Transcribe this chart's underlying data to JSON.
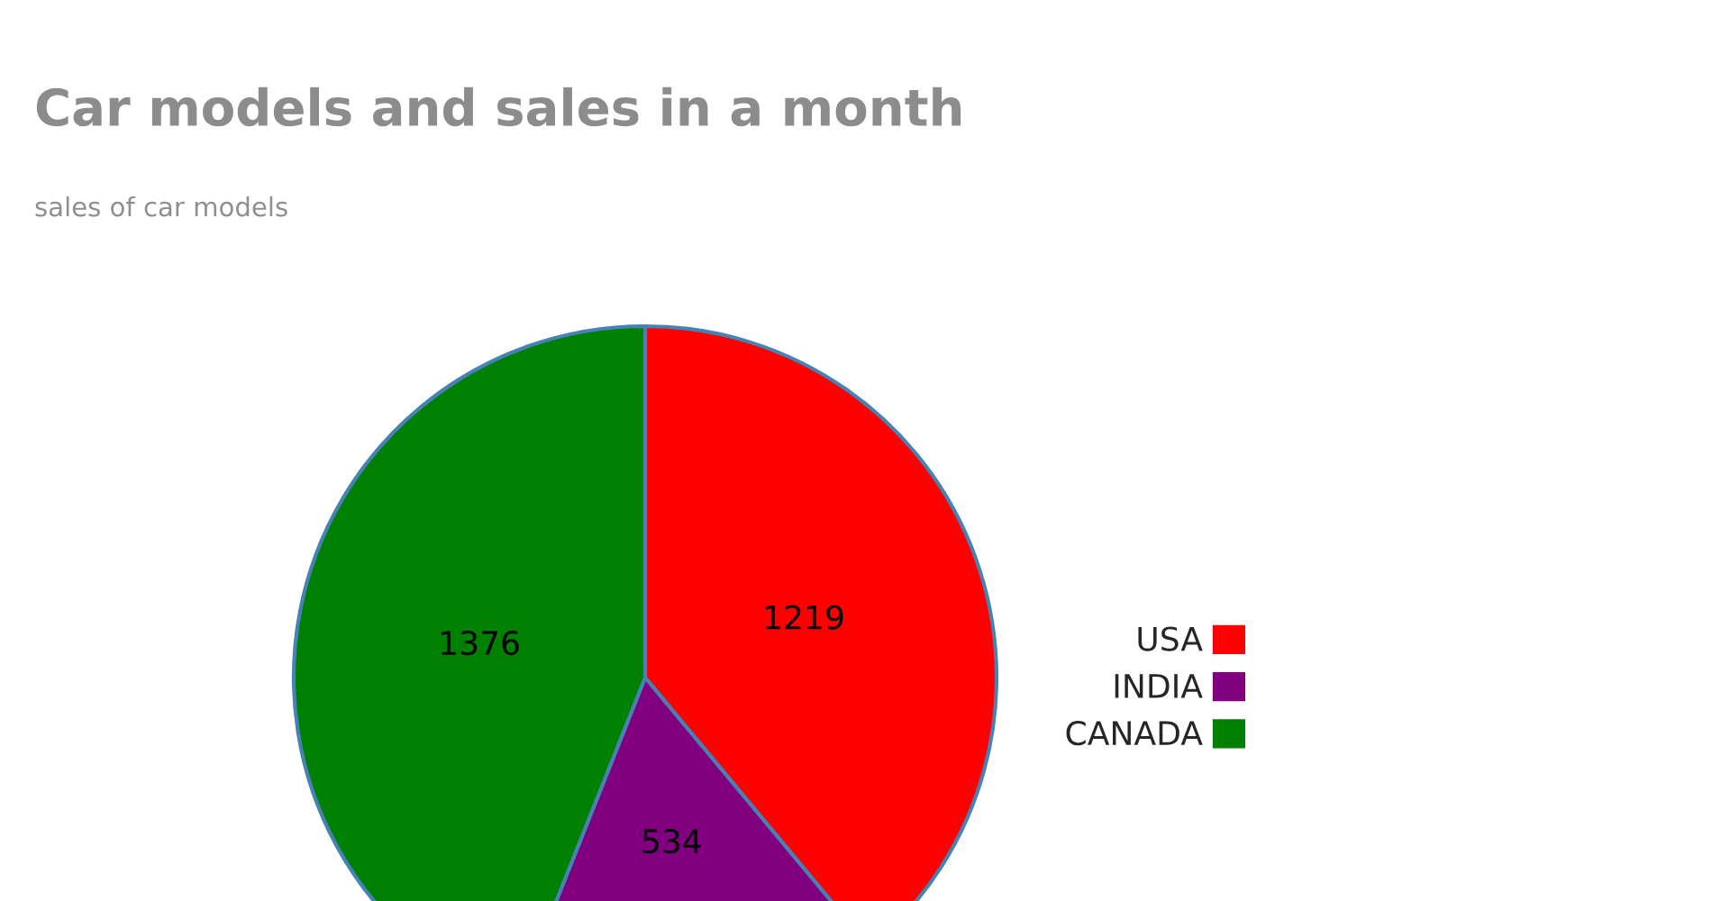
{
  "chart_data": {
    "type": "pie",
    "title": "Car models and sales in a month",
    "subtitle": "sales of car models",
    "categories": [
      "USA",
      "INDIA",
      "CANADA"
    ],
    "values": [
      1219,
      534,
      1376
    ],
    "colors": [
      "#ff0000",
      "#800080",
      "#008000"
    ],
    "data_labels": true,
    "legend": "right"
  }
}
